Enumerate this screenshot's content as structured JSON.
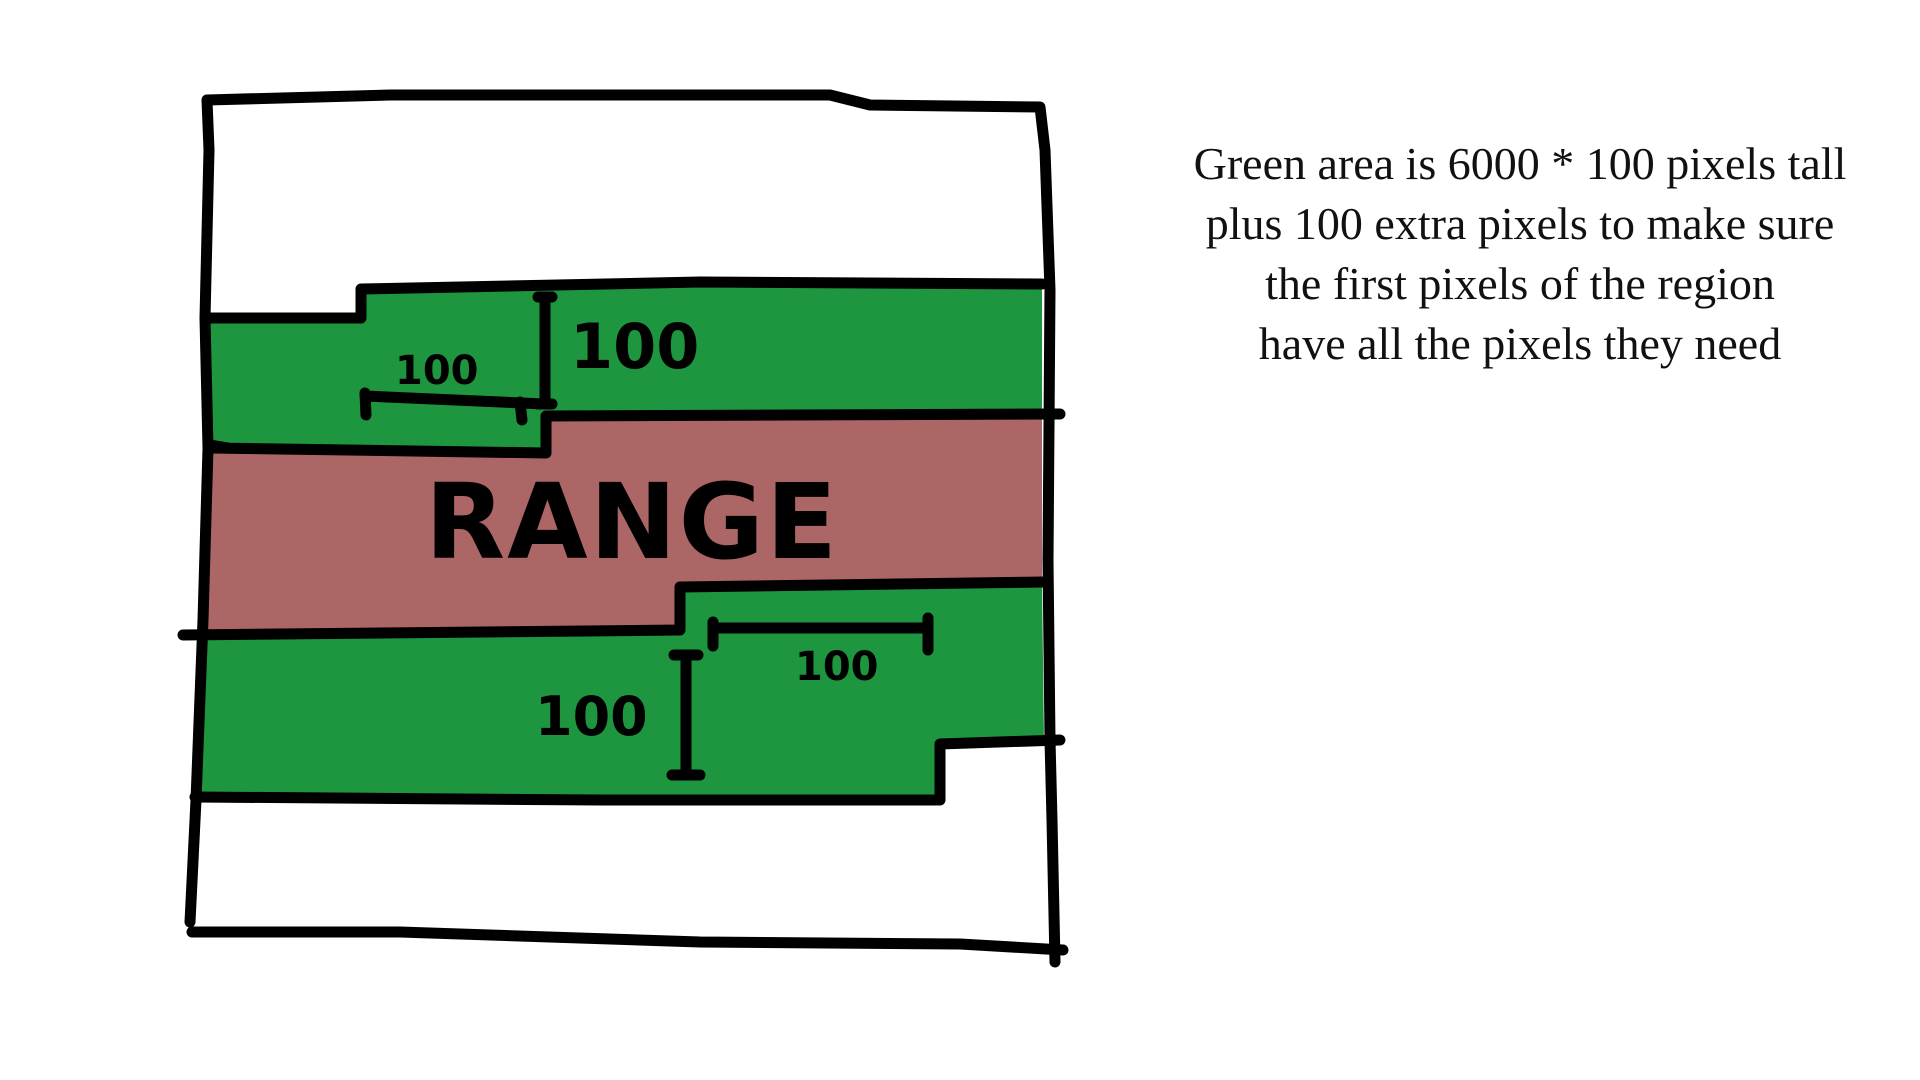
{
  "colors": {
    "green": "#1e9640",
    "range": "#ac6665",
    "stroke": "#000000",
    "background": "#ffffff"
  },
  "diagram": {
    "range_label": "RANGE",
    "top_width_label": "100",
    "top_height_label": "100",
    "bottom_width_label": "100",
    "bottom_height_label": "100"
  },
  "caption": {
    "line1": "Green area is 6000 * 100 pixels tall",
    "line2": "plus 100 extra pixels to make sure",
    "line3": "the first pixels of the region",
    "line4": "have all the pixels they need"
  }
}
